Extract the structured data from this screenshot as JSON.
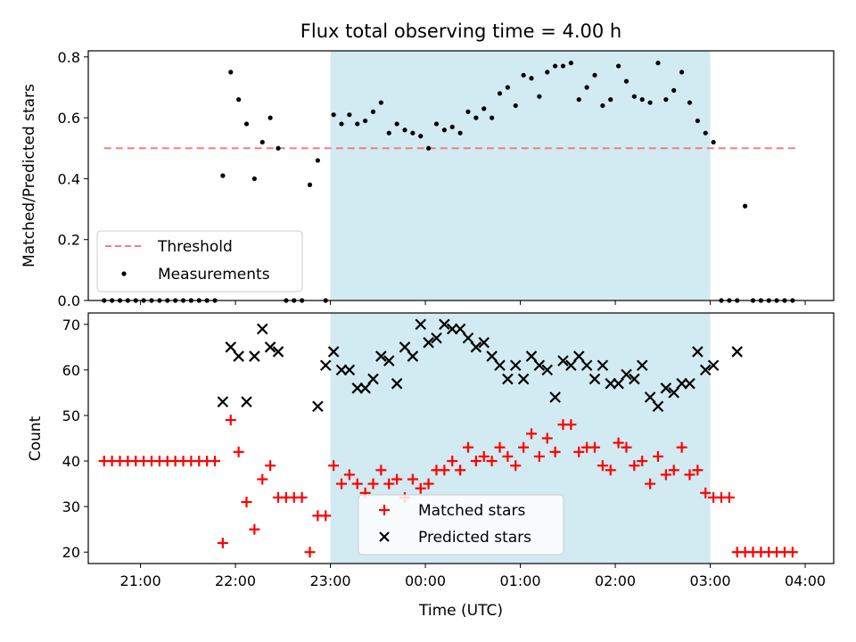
{
  "chart_data": [
    {
      "type": "scatter",
      "title": "Flux total observing time = 4.00 h",
      "xlabel": "",
      "ylabel": "Matched/Predicted stars",
      "xlim": [
        "20:27",
        "04:18"
      ],
      "ylim": [
        0,
        0.82
      ],
      "yticks": [
        "0.0",
        "0.2",
        "0.4",
        "0.6",
        "0.8"
      ],
      "xticks": [
        "21:00",
        "22:00",
        "23:00",
        "00:00",
        "01:00",
        "02:00",
        "03:00",
        "04:00"
      ],
      "show_xtick_labels": false,
      "highlight_span": [
        "23:00",
        "03:00"
      ],
      "highlight_color": "#add8e6",
      "threshold": {
        "name": "Threshold",
        "y": 0.5,
        "x_start": "20:37",
        "x_end": "03:55",
        "color": "#f08080",
        "style": "dashed"
      },
      "legend": {
        "position": "lower left",
        "entries": [
          "Threshold",
          "Measurements"
        ]
      },
      "series": [
        {
          "name": "Measurements",
          "marker": "dot",
          "color": "#000000",
          "x": [
            "20:37",
            "20:42",
            "20:47",
            "20:52",
            "20:57",
            "21:02",
            "21:07",
            "21:12",
            "21:17",
            "21:22",
            "21:27",
            "21:32",
            "21:37",
            "21:42",
            "21:47",
            "21:52",
            "21:57",
            "22:02",
            "22:07",
            "22:12",
            "22:17",
            "22:22",
            "22:27",
            "22:32",
            "22:37",
            "22:42",
            "22:47",
            "22:52",
            "22:57",
            "23:02",
            "23:07",
            "23:12",
            "23:17",
            "23:22",
            "23:27",
            "23:32",
            "23:37",
            "23:42",
            "23:47",
            "23:52",
            "23:57",
            "00:02",
            "00:07",
            "00:12",
            "00:17",
            "00:22",
            "00:27",
            "00:32",
            "00:37",
            "00:42",
            "00:47",
            "00:52",
            "00:57",
            "01:02",
            "01:07",
            "01:12",
            "01:17",
            "01:22",
            "01:27",
            "01:32",
            "01:37",
            "01:42",
            "01:47",
            "01:52",
            "01:57",
            "02:02",
            "02:07",
            "02:12",
            "02:17",
            "02:22",
            "02:27",
            "02:32",
            "02:37",
            "02:42",
            "02:47",
            "02:52",
            "02:57",
            "03:02",
            "03:07",
            "03:12",
            "03:17",
            "03:22",
            "03:27",
            "03:32",
            "03:37",
            "03:42",
            "03:47",
            "03:52"
          ],
          "y": [
            0,
            0,
            0,
            0,
            0,
            0,
            0,
            0,
            0,
            0,
            0,
            0,
            0,
            0,
            0,
            0.41,
            0.75,
            0.66,
            0.58,
            0.4,
            0.52,
            0.6,
            0.5,
            0,
            0,
            0,
            0.38,
            0.46,
            0,
            0.61,
            0.58,
            0.61,
            0.58,
            0.59,
            0.62,
            0.65,
            0.55,
            0.58,
            0.56,
            0.55,
            0.54,
            0.5,
            0.58,
            0.56,
            0.57,
            0.55,
            0.62,
            0.6,
            0.63,
            0.6,
            0.68,
            0.7,
            0.64,
            0.74,
            0.73,
            0.67,
            0.75,
            0.77,
            0.77,
            0.78,
            0.66,
            0.7,
            0.74,
            0.64,
            0.66,
            0.77,
            0.72,
            0.67,
            0.66,
            0.65,
            0.78,
            0.66,
            0.69,
            0.75,
            0.65,
            0.59,
            0.55,
            0.52,
            0,
            0,
            0,
            0.31,
            0,
            0,
            0,
            0,
            0,
            0
          ]
        }
      ]
    },
    {
      "type": "scatter",
      "title": "",
      "xlabel": "Time (UTC)",
      "ylabel": "Count",
      "xlim": [
        "20:27",
        "04:18"
      ],
      "ylim": [
        17.5,
        72.5
      ],
      "yticks": [
        "20",
        "30",
        "40",
        "50",
        "60",
        "70"
      ],
      "xticks": [
        "21:00",
        "22:00",
        "23:00",
        "00:00",
        "01:00",
        "02:00",
        "03:00",
        "04:00"
      ],
      "show_xtick_labels": true,
      "highlight_span": [
        "23:00",
        "03:00"
      ],
      "highlight_color": "#add8e6",
      "legend": {
        "position": "lower center",
        "entries": [
          "Matched stars",
          "Predicted stars"
        ]
      },
      "series": [
        {
          "name": "Matched stars",
          "marker": "plus",
          "color": "#ff0000",
          "x": [
            "20:37",
            "20:42",
            "20:47",
            "20:52",
            "20:57",
            "21:02",
            "21:07",
            "21:12",
            "21:17",
            "21:22",
            "21:27",
            "21:32",
            "21:37",
            "21:42",
            "21:47",
            "21:52",
            "21:57",
            "22:02",
            "22:07",
            "22:12",
            "22:17",
            "22:22",
            "22:27",
            "22:32",
            "22:37",
            "22:42",
            "22:47",
            "22:52",
            "22:57",
            "23:02",
            "23:07",
            "23:12",
            "23:17",
            "23:22",
            "23:27",
            "23:32",
            "23:37",
            "23:42",
            "23:47",
            "23:52",
            "23:57",
            "00:02",
            "00:07",
            "00:12",
            "00:17",
            "00:22",
            "00:27",
            "00:32",
            "00:37",
            "00:42",
            "00:47",
            "00:52",
            "00:57",
            "01:02",
            "01:07",
            "01:12",
            "01:17",
            "01:22",
            "01:27",
            "01:32",
            "01:37",
            "01:42",
            "01:47",
            "01:52",
            "01:57",
            "02:02",
            "02:07",
            "02:12",
            "02:17",
            "02:22",
            "02:27",
            "02:32",
            "02:37",
            "02:42",
            "02:47",
            "02:52",
            "02:57",
            "03:02",
            "03:07",
            "03:12",
            "03:17",
            "03:22",
            "03:27",
            "03:32",
            "03:37",
            "03:42",
            "03:47",
            "03:52"
          ],
          "y": [
            40,
            40,
            40,
            40,
            40,
            40,
            40,
            40,
            40,
            40,
            40,
            40,
            40,
            40,
            40,
            22,
            49,
            42,
            31,
            25,
            36,
            39,
            32,
            32,
            32,
            32,
            20,
            28,
            28,
            39,
            35,
            37,
            35,
            33,
            35,
            38,
            35,
            36,
            32,
            36,
            34,
            35,
            38,
            38,
            40,
            38,
            43,
            40,
            41,
            40,
            43,
            41,
            39,
            43,
            46,
            41,
            45,
            42,
            48,
            48,
            42,
            43,
            43,
            39,
            38,
            44,
            43,
            39,
            40,
            35,
            41,
            37,
            38,
            43,
            37,
            38,
            33,
            32,
            32,
            32,
            20,
            20,
            20,
            20,
            20,
            20,
            20,
            20
          ]
        },
        {
          "name": "Predicted stars",
          "marker": "x",
          "color": "#000000",
          "x": [
            "21:52",
            "21:57",
            "22:02",
            "22:07",
            "22:12",
            "22:17",
            "22:22",
            "22:27",
            "22:52",
            "22:57",
            "23:02",
            "23:07",
            "23:12",
            "23:17",
            "23:22",
            "23:27",
            "23:32",
            "23:37",
            "23:42",
            "23:47",
            "23:52",
            "23:57",
            "00:02",
            "00:07",
            "00:12",
            "00:17",
            "00:22",
            "00:27",
            "00:32",
            "00:37",
            "00:42",
            "00:47",
            "00:52",
            "00:57",
            "01:02",
            "01:07",
            "01:12",
            "01:17",
            "01:22",
            "01:27",
            "01:32",
            "01:37",
            "01:42",
            "01:47",
            "01:52",
            "01:57",
            "02:02",
            "02:07",
            "02:12",
            "02:17",
            "02:22",
            "02:27",
            "02:32",
            "02:37",
            "02:42",
            "02:47",
            "02:52",
            "02:57",
            "03:02",
            "03:17"
          ],
          "y": [
            53,
            65,
            63,
            53,
            63,
            69,
            65,
            64,
            52,
            61,
            64,
            60,
            60,
            56,
            56,
            58,
            63,
            62,
            57,
            65,
            63,
            70,
            66,
            67,
            70,
            69,
            69,
            67,
            65,
            66,
            63,
            61,
            58,
            61,
            58,
            63,
            61,
            60,
            54,
            62,
            61,
            63,
            61,
            58,
            61,
            57,
            57,
            59,
            58,
            61,
            54,
            52,
            56,
            55,
            57,
            57,
            64,
            60,
            61,
            64
          ]
        }
      ]
    }
  ]
}
